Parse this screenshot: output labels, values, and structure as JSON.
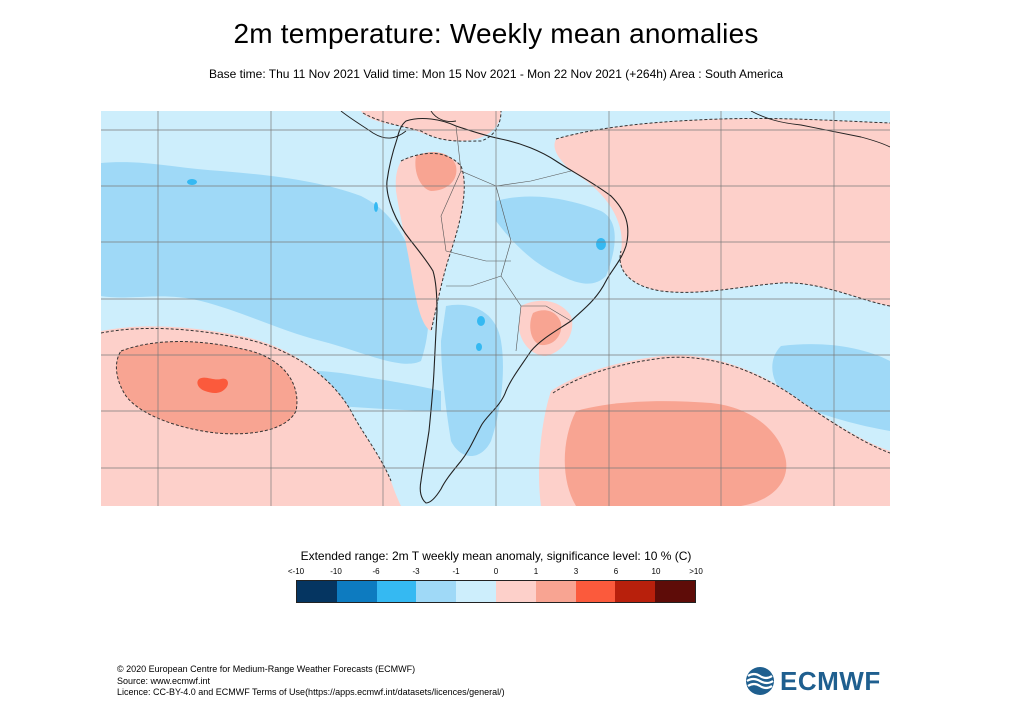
{
  "header": {
    "title": "2m temperature: Weekly mean anomalies",
    "subtitle": "Base time: Thu 11 Nov 2021 Valid time: Mon 15 Nov 2021 - Mon 22 Nov 2021 (+264h) Area : South America"
  },
  "map": {
    "area": "South America",
    "colors": {
      "land_outline": "#222222",
      "gridline": "#7a7a7a",
      "significance_contour": "#333333"
    }
  },
  "legend": {
    "title": "Extended range: 2m T weekly mean anomaly, significance level: 10 % (C)",
    "labels": [
      "<-10",
      "-10",
      "-6",
      "-3",
      "-1",
      "0",
      "1",
      "3",
      "6",
      "10",
      ">10"
    ],
    "colors": [
      "#053561",
      "#0d7bc0",
      "#35b9f2",
      "#9fd9f7",
      "#cdeefc",
      "#fdd0ca",
      "#f8a492",
      "#fb5a3c",
      "#b8200c",
      "#5e0c08"
    ]
  },
  "credits": {
    "line1": "© 2020 European Centre for Medium-Range Weather Forecasts (ECMWF)",
    "line2": "Source: www.ecmwf.int",
    "line3": "Licence: CC-BY-4.0 and ECMWF Terms of Use(https://apps.ecmwf.int/datasets/licences/general/)"
  },
  "logo": {
    "text": "ECMWF",
    "icon": "ecmwf-logo-icon"
  }
}
